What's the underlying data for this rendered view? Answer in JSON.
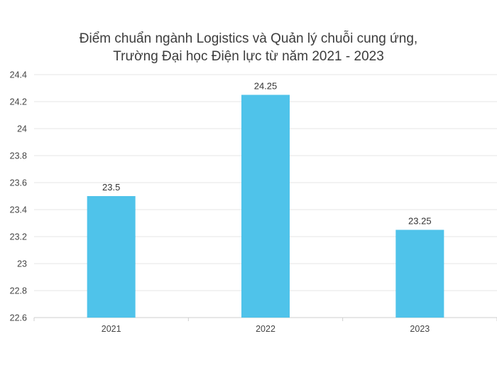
{
  "chart_data": {
    "type": "bar",
    "title_line1": "Điểm chuẩn ngành Logistics và Quản lý chuỗi cung ứng,",
    "title_line2": "Trường Đại học Điện lực từ năm 2021 - 2023",
    "categories": [
      "2021",
      "2022",
      "2023"
    ],
    "values": [
      23.5,
      24.25,
      23.25
    ],
    "data_labels": [
      "23.5",
      "24.25",
      "23.25"
    ],
    "ylim": [
      22.6,
      24.4
    ],
    "yticks": [
      22.6,
      22.8,
      23,
      23.2,
      23.4,
      23.6,
      23.8,
      24,
      24.2,
      24.4
    ],
    "ytick_labels": [
      "22.6",
      "22.8",
      "23",
      "23.2",
      "23.4",
      "23.6",
      "23.8",
      "24",
      "24.2",
      "24.4"
    ],
    "bar_color": "#4fc3ea",
    "grid": true,
    "legend": "none"
  }
}
